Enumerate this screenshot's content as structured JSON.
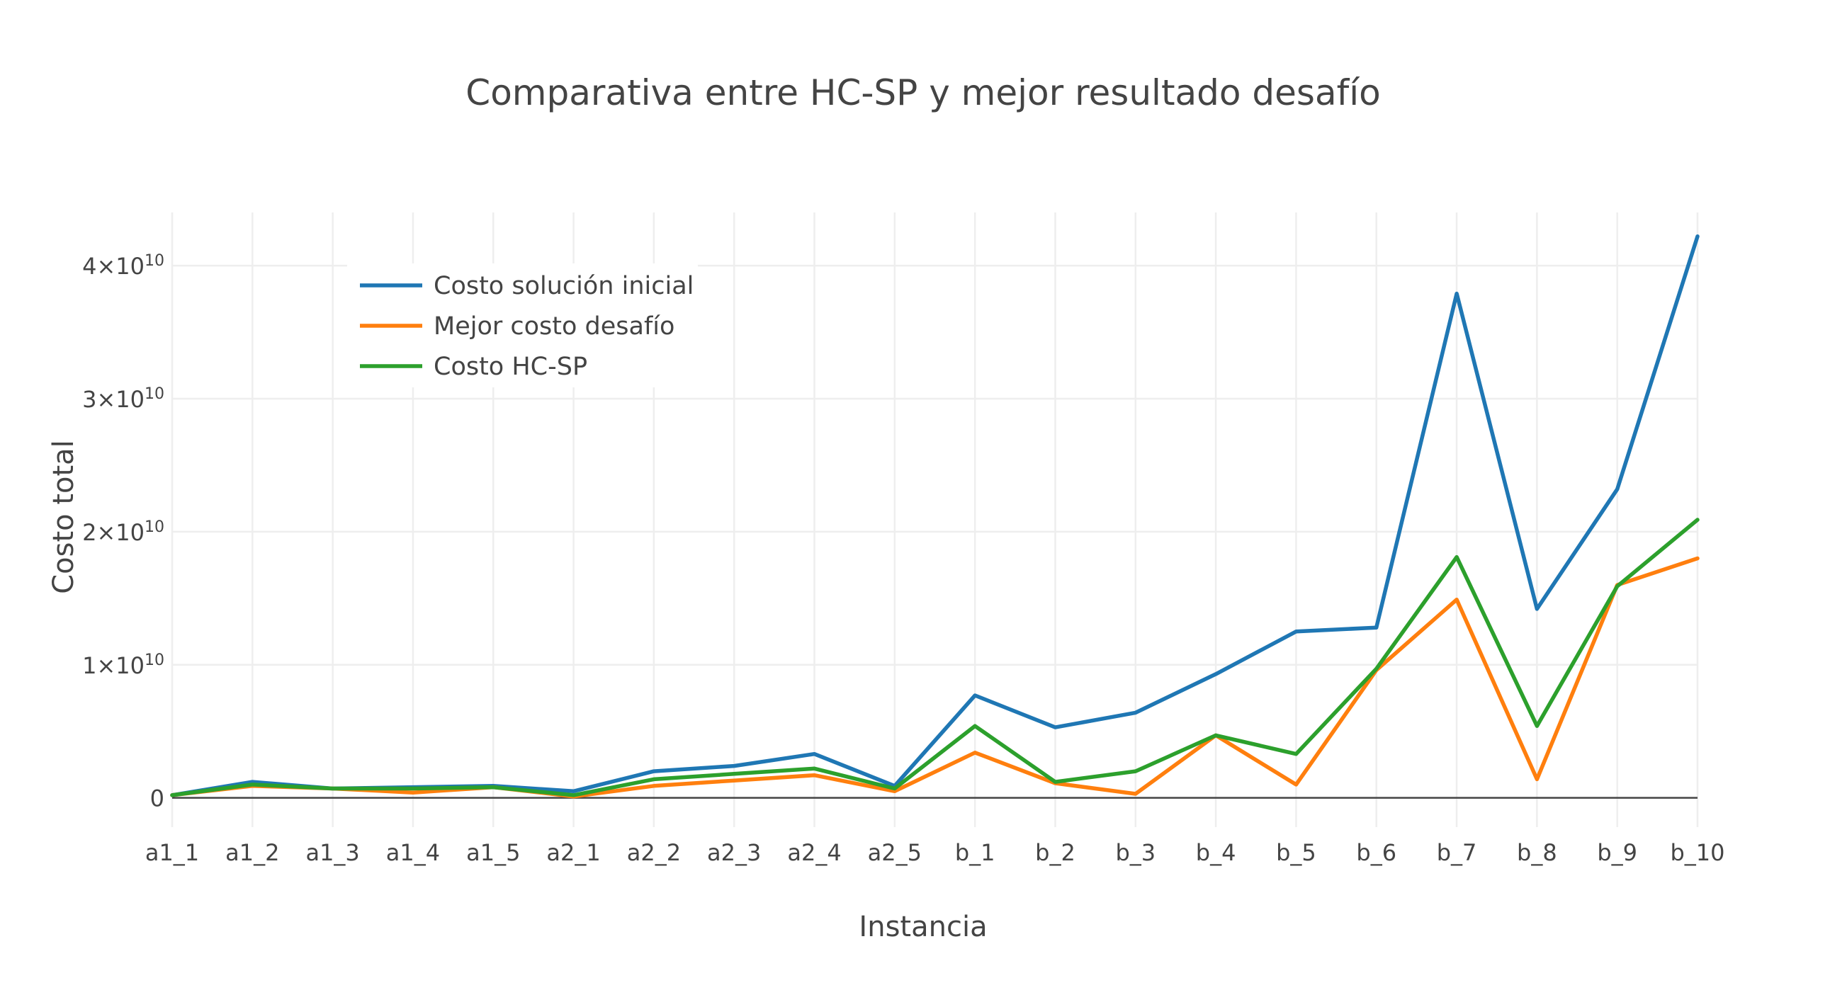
{
  "chart_data": {
    "type": "line",
    "title": "Comparativa  entre HC-SP  y  mejor  resultado  desafío",
    "xlabel": "Instancia",
    "ylabel": "Costo total",
    "categories": [
      "a1_1",
      "a1_2",
      "a1_3",
      "a1_4",
      "a1_5",
      "a2_1",
      "a2_2",
      "a2_3",
      "a2_4",
      "a2_5",
      "b_1",
      "b_2",
      "b_3",
      "b_4",
      "b_5",
      "b_6",
      "b_7",
      "b_8",
      "b_9",
      "b_10"
    ],
    "ylim": [
      -2200000000,
      44000000000
    ],
    "yticks": [
      {
        "value": 0,
        "base": "0",
        "exp": ""
      },
      {
        "value": 10000000000,
        "base": "1×10",
        "exp": "10"
      },
      {
        "value": 20000000000,
        "base": "2×10",
        "exp": "10"
      },
      {
        "value": 30000000000,
        "base": "3×10",
        "exp": "10"
      },
      {
        "value": 40000000000,
        "base": "4×10",
        "exp": "10"
      }
    ],
    "grid": true,
    "legend_position": "top-left",
    "series": [
      {
        "name": "Costo solución inicial",
        "color": "#1f77b4",
        "values": [
          200000000,
          1200000000,
          700000000,
          800000000,
          900000000,
          500000000,
          2000000000,
          2400000000,
          3300000000,
          900000000,
          7700000000,
          5300000000,
          6400000000,
          9300000000,
          12500000000,
          12800000000,
          37900000000,
          14200000000,
          23200000000,
          42200000000
        ]
      },
      {
        "name": "Mejor costo desafío",
        "color": "#ff7f0e",
        "values": [
          200000000,
          900000000,
          700000000,
          400000000,
          800000000,
          100000000,
          900000000,
          1300000000,
          1700000000,
          500000000,
          3400000000,
          1100000000,
          300000000,
          4700000000,
          1000000000,
          9600000000,
          14900000000,
          1400000000,
          16000000000,
          18000000000
        ]
      },
      {
        "name": "Costo HC-SP",
        "color": "#2ca02c",
        "values": [
          200000000,
          1000000000,
          700000000,
          700000000,
          800000000,
          200000000,
          1400000000,
          1800000000,
          2200000000,
          700000000,
          5400000000,
          1200000000,
          2000000000,
          4700000000,
          3300000000,
          9700000000,
          18100000000,
          5400000000,
          15900000000,
          20900000000
        ]
      }
    ]
  }
}
